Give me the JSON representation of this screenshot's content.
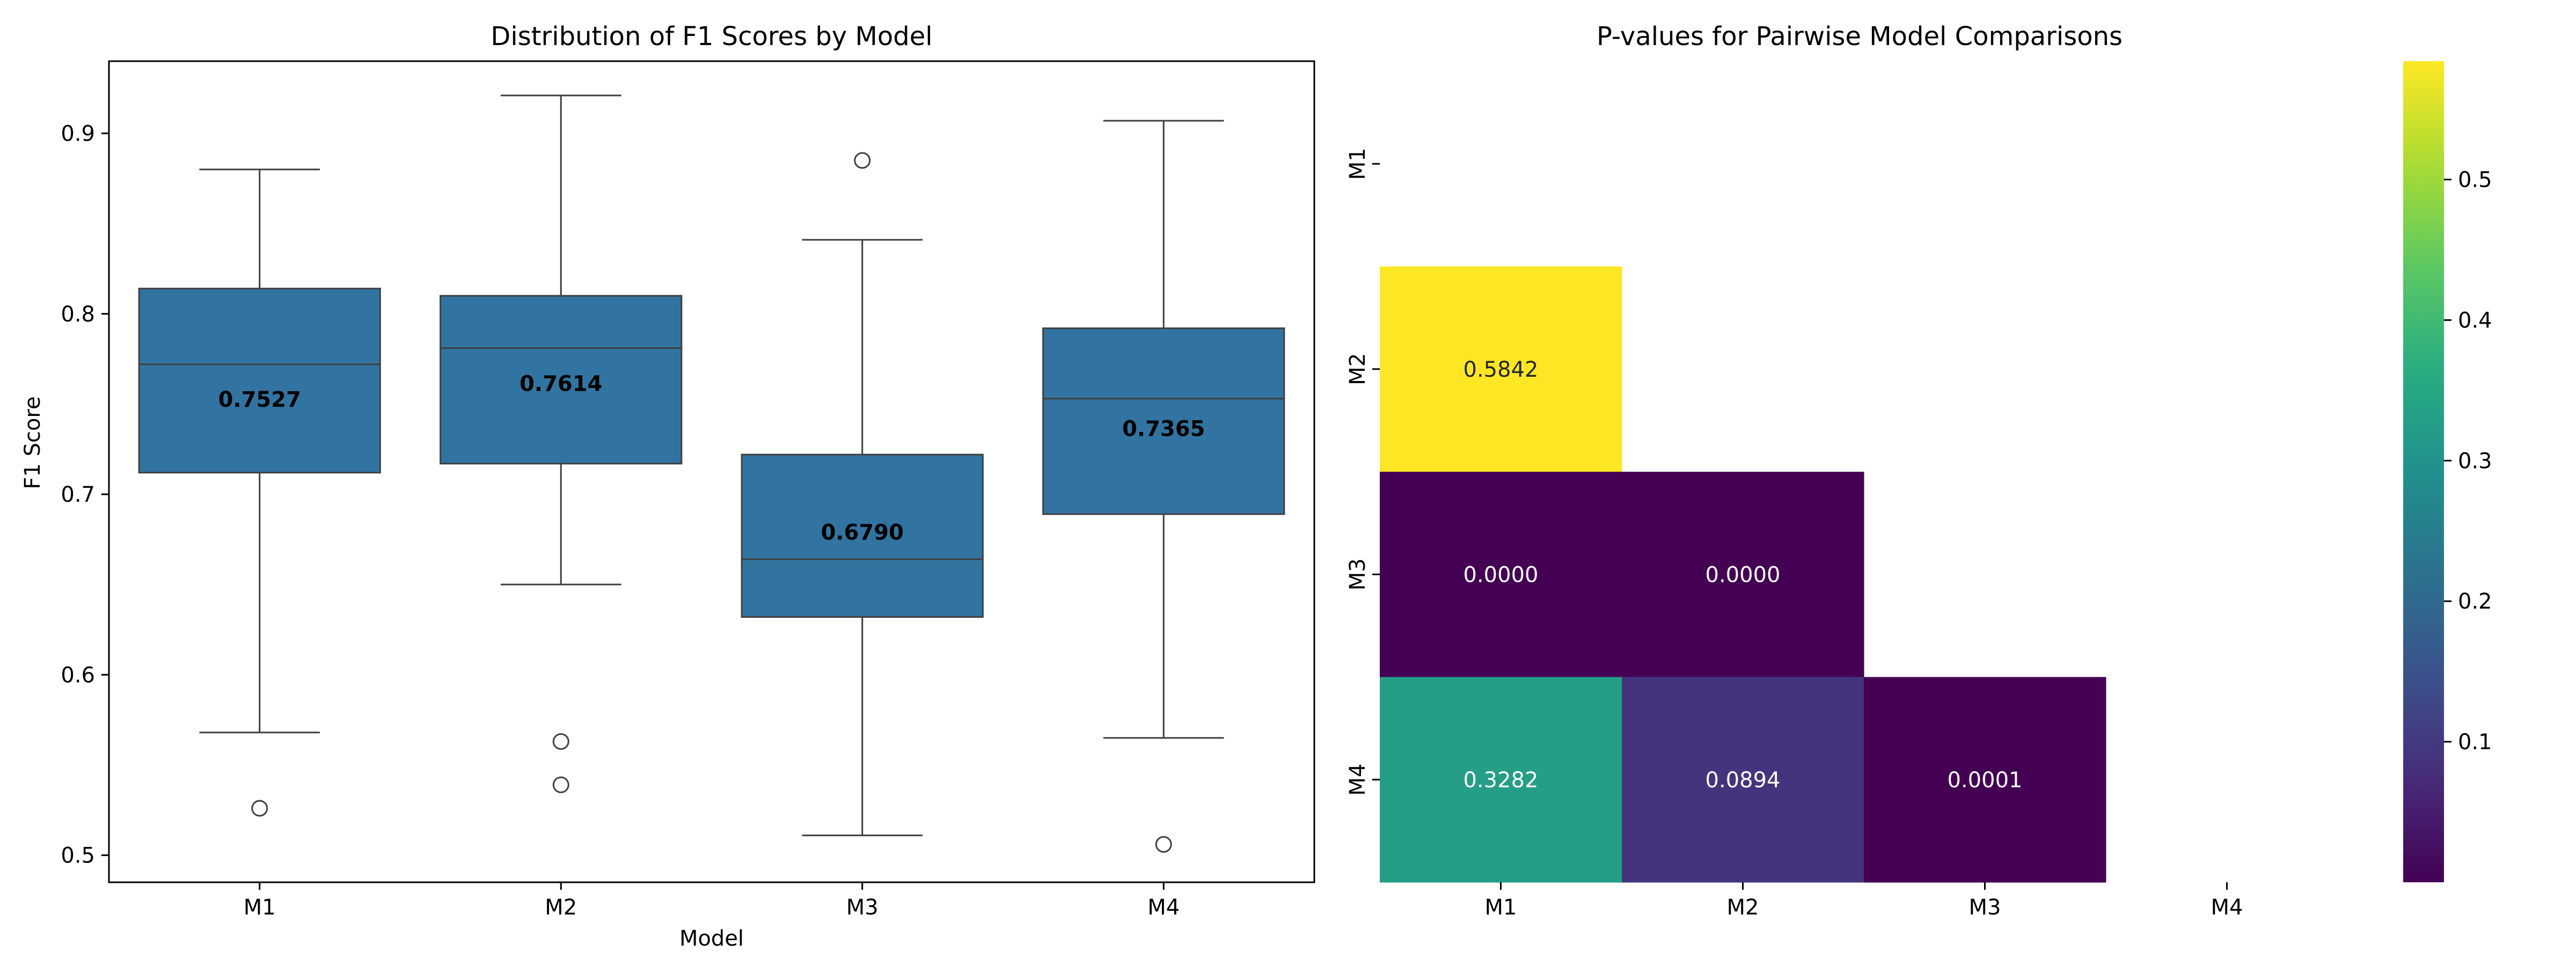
{
  "chart_data": [
    {
      "type": "box",
      "title": "Distribution of F1 Scores by Model",
      "xlabel": "Model",
      "ylabel": "F1 Score",
      "ylim": [
        0.485,
        0.94
      ],
      "yticks": [
        0.5,
        0.6,
        0.7,
        0.8,
        0.9
      ],
      "ytick_labels": [
        "0.5",
        "0.6",
        "0.7",
        "0.8",
        "0.9"
      ],
      "box_color": "#3274a1",
      "categories": [
        "M1",
        "M2",
        "M3",
        "M4"
      ],
      "boxes": [
        {
          "category": "M1",
          "whisker_low": 0.568,
          "q1": 0.712,
          "median": 0.772,
          "q3": 0.814,
          "whisker_high": 0.88,
          "outliers": [
            0.526
          ],
          "mean": 0.7527,
          "mean_label": "0.7527"
        },
        {
          "category": "M2",
          "whisker_low": 0.65,
          "q1": 0.717,
          "median": 0.781,
          "q3": 0.81,
          "whisker_high": 0.921,
          "outliers": [
            0.563,
            0.539
          ],
          "mean": 0.7614,
          "mean_label": "0.7614"
        },
        {
          "category": "M3",
          "whisker_low": 0.511,
          "q1": 0.632,
          "median": 0.664,
          "q3": 0.722,
          "whisker_high": 0.841,
          "outliers": [
            0.885
          ],
          "mean": 0.679,
          "mean_label": "0.6790"
        },
        {
          "category": "M4",
          "whisker_low": 0.565,
          "q1": 0.689,
          "median": 0.753,
          "q3": 0.792,
          "whisker_high": 0.907,
          "outliers": [
            0.506
          ],
          "mean": 0.7365,
          "mean_label": "0.7365"
        }
      ]
    },
    {
      "type": "heatmap",
      "title": "P-values for Pairwise Model Comparisons",
      "x_labels": [
        "M1",
        "M2",
        "M3",
        "M4"
      ],
      "y_labels": [
        "M1",
        "M2",
        "M3",
        "M4"
      ],
      "mask": "upper triangle including diagonal",
      "values": [
        [
          null,
          null,
          null,
          null
        ],
        [
          0.5842,
          null,
          null,
          null
        ],
        [
          0.0,
          0.0,
          null,
          null
        ],
        [
          0.3282,
          0.0894,
          0.0001,
          null
        ]
      ],
      "value_labels": [
        [
          null,
          null,
          null,
          null
        ],
        [
          "0.5842",
          null,
          null,
          null
        ],
        [
          "0.0000",
          "0.0000",
          null,
          null
        ],
        [
          "0.3282",
          "0.0894",
          "0.0001",
          null
        ]
      ],
      "colormap": "viridis",
      "colorbar": {
        "min": 0.0,
        "max": 0.5842,
        "ticks": [
          0.1,
          0.2,
          0.3,
          0.4,
          0.5
        ],
        "tick_labels": [
          "0.1",
          "0.2",
          "0.3",
          "0.4",
          "0.5"
        ]
      }
    }
  ]
}
